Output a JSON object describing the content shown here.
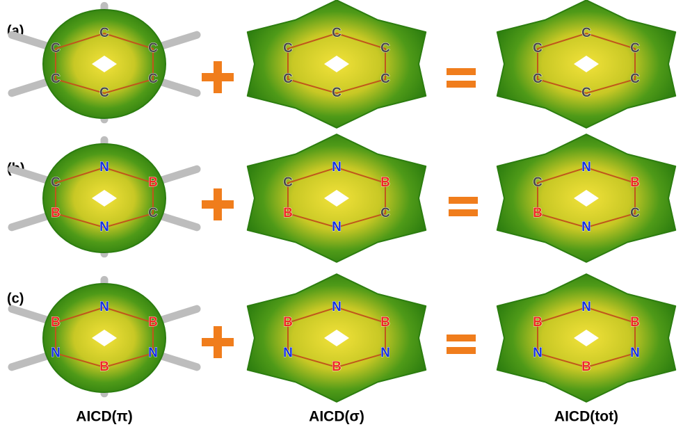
{
  "rows": [
    {
      "label": "(a)",
      "molecules": [
        {
          "atoms": [
            "C",
            "C",
            "C",
            "C",
            "C",
            "C"
          ]
        },
        {
          "atoms": [
            "C",
            "C",
            "C",
            "C",
            "C",
            "C"
          ]
        },
        {
          "atoms": [
            "C",
            "C",
            "C",
            "C",
            "C",
            "C"
          ]
        }
      ]
    },
    {
      "label": "(b)",
      "molecules": [
        {
          "atoms": [
            "N",
            "B",
            "C",
            "N",
            "B",
            "C"
          ]
        },
        {
          "atoms": [
            "N",
            "B",
            "C",
            "N",
            "B",
            "C"
          ]
        },
        {
          "atoms": [
            "N",
            "B",
            "C",
            "N",
            "B",
            "C"
          ]
        }
      ]
    },
    {
      "label": "(c)",
      "molecules": [
        {
          "atoms": [
            "N",
            "B",
            "N",
            "B",
            "N",
            "B"
          ]
        },
        {
          "atoms": [
            "N",
            "B",
            "N",
            "B",
            "N",
            "B"
          ]
        },
        {
          "atoms": [
            "N",
            "B",
            "N",
            "B",
            "N",
            "B"
          ]
        }
      ]
    }
  ],
  "captions": [
    "AICD(π)",
    "AICD(σ)",
    "AICD(tot)"
  ],
  "element_colors": {
    "C": "#4a4a4a",
    "N": "#1530e0",
    "B": "#ee2a24"
  }
}
